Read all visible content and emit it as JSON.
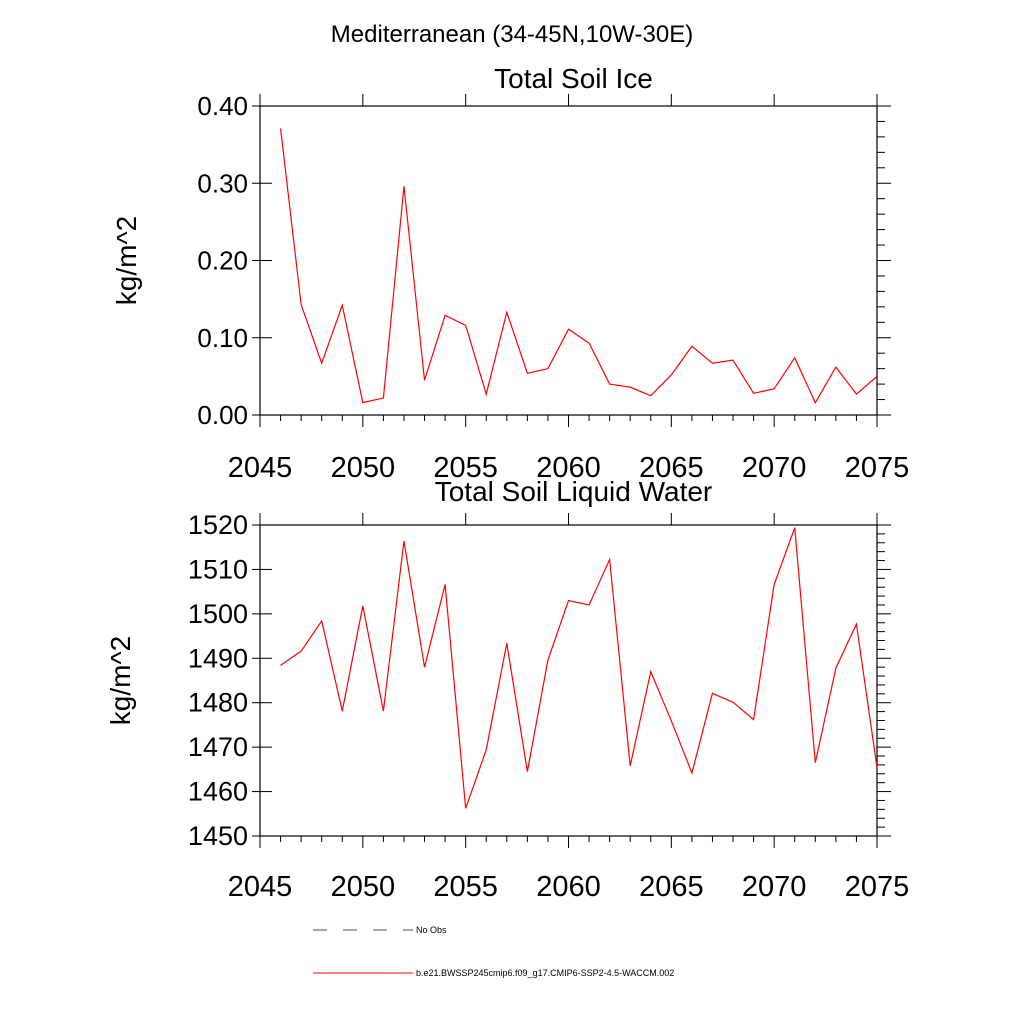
{
  "suptitle": "Mediterranean (34-45N,10W-30E)",
  "x_tick_labels": [
    "2045",
    "2050",
    "2055",
    "2060",
    "2065",
    "2070",
    "2075"
  ],
  "legend": {
    "items": [
      {
        "label": "No Obs",
        "style": "dashed",
        "color": "#4a4a8a"
      },
      {
        "label": "b.e21.BWSSP245cmip6.f09_g17.CMIP6-SSP2-4.5-WACCM.002",
        "style": "solid",
        "color": "#ff0000"
      }
    ]
  },
  "chart_data": [
    {
      "type": "line",
      "title": "Total Soil Ice",
      "xlabel": "",
      "ylabel": "kg/m^2",
      "xlim": [
        2045,
        2075
      ],
      "ylim": [
        0.0,
        0.4
      ],
      "x_ticks": [
        2045,
        2050,
        2055,
        2060,
        2065,
        2070,
        2075
      ],
      "y_ticks": [
        0.0,
        0.1,
        0.2,
        0.3,
        0.4
      ],
      "y_tick_labels": [
        "0.00",
        "0.10",
        "0.20",
        "0.30",
        "0.40"
      ],
      "series": [
        {
          "name": "b.e21.BWSSP245cmip6.f09_g17.CMIP6-SSP2-4.5-WACCM.002",
          "color": "#ff0000",
          "x": [
            2046,
            2047,
            2048,
            2049,
            2050,
            2051,
            2052,
            2053,
            2054,
            2055,
            2056,
            2057,
            2058,
            2059,
            2060,
            2061,
            2062,
            2063,
            2064,
            2065,
            2066,
            2067,
            2068,
            2069,
            2070,
            2071,
            2072,
            2073,
            2074,
            2075
          ],
          "values": [
            0.371,
            0.143,
            0.067,
            0.142,
            0.016,
            0.022,
            0.296,
            0.045,
            0.129,
            0.116,
            0.027,
            0.133,
            0.054,
            0.06,
            0.111,
            0.093,
            0.04,
            0.036,
            0.025,
            0.052,
            0.089,
            0.067,
            0.071,
            0.028,
            0.034,
            0.074,
            0.016,
            0.062,
            0.027,
            0.05
          ]
        }
      ]
    },
    {
      "type": "line",
      "title": "Total Soil Liquid Water",
      "xlabel": "",
      "ylabel": "kg/m^2",
      "xlim": [
        2045,
        2075
      ],
      "ylim": [
        1450,
        1520
      ],
      "x_ticks": [
        2045,
        2050,
        2055,
        2060,
        2065,
        2070,
        2075
      ],
      "y_ticks": [
        1450,
        1460,
        1470,
        1480,
        1490,
        1500,
        1510,
        1520
      ],
      "y_tick_labels": [
        "1450",
        "1460",
        "1470",
        "1480",
        "1490",
        "1500",
        "1510",
        "1520"
      ],
      "series": [
        {
          "name": "b.e21.BWSSP245cmip6.f09_g17.CMIP6-SSP2-4.5-WACCM.002",
          "color": "#ff0000",
          "x": [
            2046,
            2047,
            2048,
            2049,
            2050,
            2051,
            2052,
            2053,
            2054,
            2055,
            2056,
            2057,
            2058,
            2059,
            2060,
            2061,
            2062,
            2063,
            2064,
            2065,
            2066,
            2067,
            2068,
            2069,
            2070,
            2071,
            2072,
            2073,
            2074,
            2075
          ],
          "values": [
            1488.4,
            1491.6,
            1498.4,
            1478.1,
            1501.8,
            1478.1,
            1516.4,
            1488.0,
            1506.6,
            1456.2,
            1469.4,
            1493.4,
            1464.5,
            1489.6,
            1503.0,
            1502.0,
            1512.2,
            1465.8,
            1487.0,
            1475.9,
            1464.2,
            1482.1,
            1480.1,
            1476.2,
            1506.6,
            1519.4,
            1466.5,
            1487.8,
            1497.7,
            1465.4
          ]
        }
      ]
    }
  ]
}
